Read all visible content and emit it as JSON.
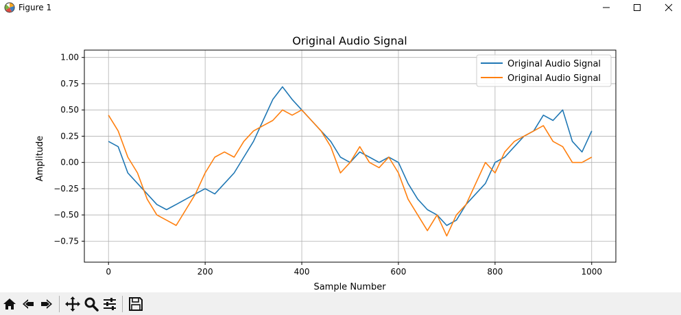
{
  "window": {
    "title": "Figure 1",
    "controls": [
      "minimize-icon",
      "maximize-icon",
      "close-icon"
    ]
  },
  "toolbar": {
    "buttons": [
      "home-icon",
      "back-icon",
      "forward-icon",
      "pan-icon",
      "zoom-icon",
      "configure-subplots-icon",
      "save-icon"
    ]
  },
  "chart_data": {
    "type": "line",
    "title": "Original Audio Signal",
    "xlabel": "Sample Number",
    "ylabel": "Amplitude",
    "xlim": [
      -50,
      1050
    ],
    "ylim": [
      -0.95,
      1.07
    ],
    "xticks": [
      0,
      200,
      400,
      600,
      800,
      1000
    ],
    "xtick_labels": [
      "0",
      "200",
      "400",
      "600",
      "800",
      "1000"
    ],
    "yticks": [
      -0.75,
      -0.5,
      -0.25,
      0.0,
      0.25,
      0.5,
      0.75,
      1.0
    ],
    "ytick_labels": [
      "−0.75",
      "−0.50",
      "−0.25",
      "0.00",
      "0.25",
      "0.50",
      "0.75",
      "1.00"
    ],
    "grid": true,
    "legend_position": "top-right",
    "series": [
      {
        "name": "Original Audio Signal",
        "color": "#1f77b4",
        "x": [
          0,
          20,
          40,
          60,
          80,
          100,
          120,
          140,
          160,
          180,
          200,
          220,
          240,
          260,
          280,
          300,
          320,
          340,
          360,
          380,
          400,
          420,
          440,
          460,
          480,
          500,
          520,
          540,
          560,
          580,
          600,
          620,
          640,
          660,
          680,
          700,
          720,
          740,
          760,
          780,
          800,
          820,
          840,
          860,
          880,
          900,
          920,
          940,
          960,
          980,
          1000
        ],
        "y": [
          0.2,
          0.15,
          -0.1,
          -0.2,
          -0.3,
          -0.4,
          -0.45,
          -0.4,
          -0.35,
          -0.3,
          -0.25,
          -0.3,
          -0.2,
          -0.1,
          0.05,
          0.2,
          0.4,
          0.6,
          0.72,
          0.6,
          0.5,
          0.4,
          0.3,
          0.2,
          0.05,
          0.0,
          0.1,
          0.05,
          0.0,
          0.05,
          0.0,
          -0.2,
          -0.35,
          -0.45,
          -0.5,
          -0.6,
          -0.55,
          -0.4,
          -0.3,
          -0.2,
          0.0,
          0.05,
          0.15,
          0.25,
          0.3,
          0.45,
          0.4,
          0.5,
          0.2,
          0.1,
          0.3
        ]
      },
      {
        "name": "Original Audio Signal",
        "color": "#ff7f0e",
        "x": [
          0,
          20,
          40,
          60,
          80,
          100,
          120,
          140,
          160,
          180,
          200,
          220,
          240,
          260,
          280,
          300,
          320,
          340,
          360,
          380,
          400,
          420,
          440,
          460,
          480,
          500,
          520,
          540,
          560,
          580,
          600,
          620,
          640,
          660,
          680,
          700,
          720,
          740,
          760,
          780,
          800,
          820,
          840,
          860,
          880,
          900,
          920,
          940,
          960,
          980,
          1000
        ],
        "y": [
          0.45,
          0.3,
          0.05,
          -0.1,
          -0.35,
          -0.5,
          -0.55,
          -0.6,
          -0.45,
          -0.3,
          -0.1,
          0.05,
          0.1,
          0.05,
          0.2,
          0.3,
          0.35,
          0.4,
          0.5,
          0.45,
          0.5,
          0.4,
          0.3,
          0.15,
          -0.1,
          0.0,
          0.15,
          0.0,
          -0.05,
          0.05,
          -0.1,
          -0.35,
          -0.5,
          -0.65,
          -0.5,
          -0.7,
          -0.5,
          -0.4,
          -0.2,
          0.0,
          -0.1,
          0.1,
          0.2,
          0.25,
          0.3,
          0.35,
          0.2,
          0.15,
          0.0,
          0.0,
          0.05
        ]
      }
    ]
  }
}
